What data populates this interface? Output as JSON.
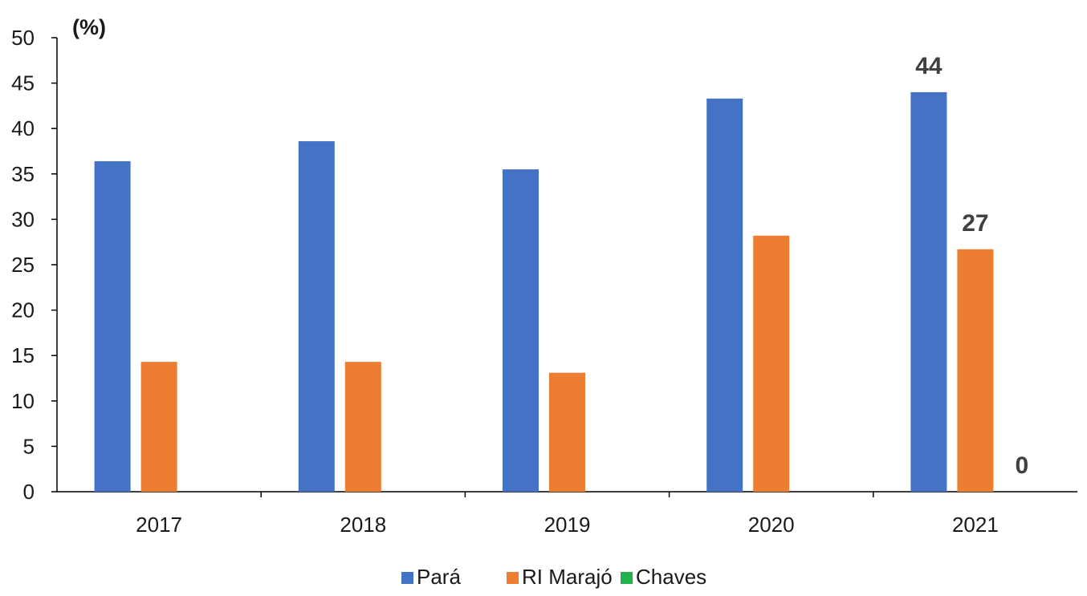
{
  "chart_data": {
    "type": "bar",
    "ylabel": "(%)",
    "ylim": [
      0,
      50
    ],
    "yticks": [
      "0",
      "5",
      "10",
      "15",
      "20",
      "25",
      "30",
      "35",
      "40",
      "45",
      "50"
    ],
    "categories": [
      "2017",
      "2018",
      "2019",
      "2020",
      "2021"
    ],
    "series": [
      {
        "name": "Pará",
        "color": "#4472C4",
        "values": [
          36.4,
          38.6,
          35.5,
          43.3,
          44.0
        ]
      },
      {
        "name": "RI Marajó",
        "color": "#ED7D31",
        "values": [
          14.3,
          14.3,
          13.1,
          28.2,
          26.7
        ]
      },
      {
        "name": "Chaves",
        "color": "#22B14C",
        "values": [
          0,
          0,
          0,
          0,
          0
        ]
      }
    ],
    "data_labels": [
      {
        "series": 0,
        "category": 4,
        "text": "44"
      },
      {
        "series": 1,
        "category": 4,
        "text": "27"
      },
      {
        "series": 2,
        "category": 4,
        "text": "0"
      }
    ],
    "grid": false,
    "legend": "bottom"
  }
}
